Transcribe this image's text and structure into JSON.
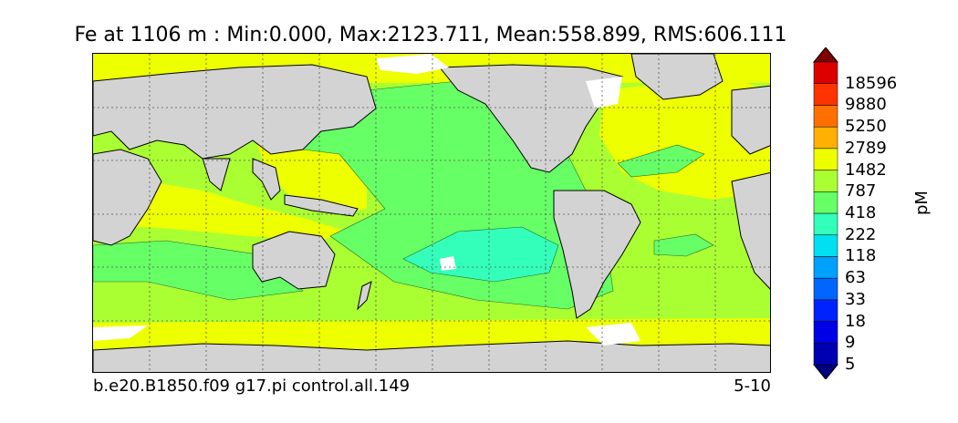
{
  "title": "Fe at 1106 m : Min:0.000, Max:2123.711, Mean:558.899, RMS:606.111",
  "footer": {
    "case_name": "b.e20.B1850.f09 g17.pi control.all.149",
    "period": "5-10"
  },
  "colorbar": {
    "unit": "pM",
    "labels": [
      "18596",
      "9880",
      "5250",
      "2789",
      "1482",
      "787",
      "418",
      "222",
      "118",
      "63",
      "33",
      "18",
      "9",
      "5"
    ],
    "colors": [
      "#000080",
      "#0000b3",
      "#0000e6",
      "#0022ff",
      "#0066ff",
      "#00a0ff",
      "#00e0f0",
      "#33ffbb",
      "#66ff66",
      "#aaff33",
      "#eeff00",
      "#ffb000",
      "#ff7000",
      "#ff3300",
      "#dd0000",
      "#800000"
    ],
    "extend": "both"
  },
  "map": {
    "land_color": "#d3d3d3",
    "sea_ice_color": "#ffffff",
    "grid_lines": "dotted",
    "field_colors": {
      "low_418_787": "#aaff33",
      "mid_787_1482": "#eeff00",
      "c_222_418": "#66ff66",
      "c_118_222": "#33ffbb"
    }
  }
}
